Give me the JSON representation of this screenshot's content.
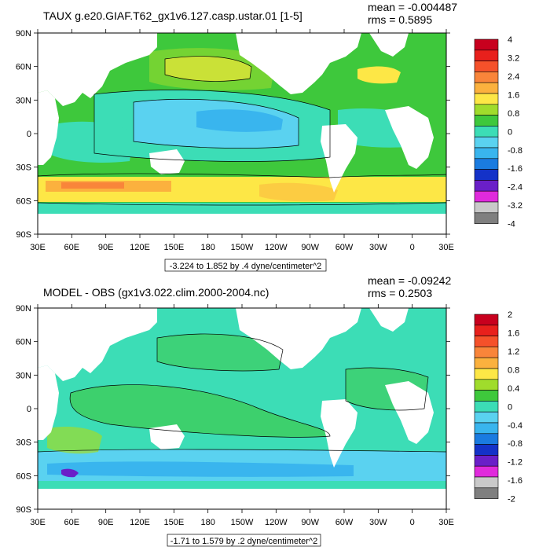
{
  "chart_data": [
    {
      "type": "heatmap",
      "title": "TAUX g.e20.GIAF.T62_gx1v6.127.casp.ustar.01 [1-5]",
      "stats": {
        "mean": "mean = -0.004487",
        "rms": "rms = 0.5895"
      },
      "subtitle": "-3.224 to 1.852 by .4 dyne/centimeter^2",
      "yticks": [
        "90N",
        "60N",
        "30N",
        "0",
        "30S",
        "60S",
        "90S"
      ],
      "xticks": [
        "30E",
        "60E",
        "90E",
        "120E",
        "150E",
        "180",
        "150W",
        "120W",
        "90W",
        "60W",
        "30W",
        "0",
        "30E"
      ],
      "xrange": [
        30,
        390
      ],
      "yrange": [
        -90,
        90
      ],
      "colorbar": {
        "labels": [
          "4",
          "3.2",
          "2.4",
          "1.6",
          "0.8",
          "0",
          "-0.8",
          "-1.6",
          "-2.4",
          "-3.2",
          "-4"
        ],
        "colors": [
          "#c8001e",
          "#e8201c",
          "#f5512a",
          "#f9853a",
          "#fbb13e",
          "#fde746",
          "#a0dc2c",
          "#3ec83c",
          "#3cddb6",
          "#5ad2f0",
          "#39b5ee",
          "#1a7be0",
          "#1432c8",
          "#6a1fc8",
          "#e02adc",
          "#c9c9c9",
          "#7f7f7f"
        ]
      },
      "ocean_base": "#3ec83c"
    },
    {
      "type": "heatmap",
      "title": "MODEL - OBS (gx1v3.022.clim.2000-2004.nc)",
      "stats": {
        "mean": "mean = -0.09242",
        "rms": "rms = 0.2503"
      },
      "subtitle": "-1.71 to 1.579 by .2 dyne/centimeter^2",
      "yticks": [
        "90N",
        "60N",
        "30N",
        "0",
        "30S",
        "60S",
        "90S"
      ],
      "xticks": [
        "30E",
        "60E",
        "90E",
        "120E",
        "150E",
        "180",
        "150W",
        "120W",
        "90W",
        "60W",
        "30W",
        "0",
        "30E"
      ],
      "xrange": [
        30,
        390
      ],
      "yrange": [
        -90,
        90
      ],
      "colorbar": {
        "labels": [
          "2",
          "1.6",
          "1.2",
          "0.8",
          "0.4",
          "0",
          "-0.4",
          "-0.8",
          "-1.2",
          "-1.6",
          "-2"
        ],
        "colors": [
          "#c8001e",
          "#e8201c",
          "#f5512a",
          "#f9853a",
          "#fbb13e",
          "#fde746",
          "#a0dc2c",
          "#3ec83c",
          "#3cddb6",
          "#5ad2f0",
          "#39b5ee",
          "#1a7be0",
          "#1432c8",
          "#6a1fc8",
          "#e02adc",
          "#c9c9c9",
          "#7f7f7f"
        ]
      },
      "ocean_base": "#3cddb6"
    }
  ]
}
